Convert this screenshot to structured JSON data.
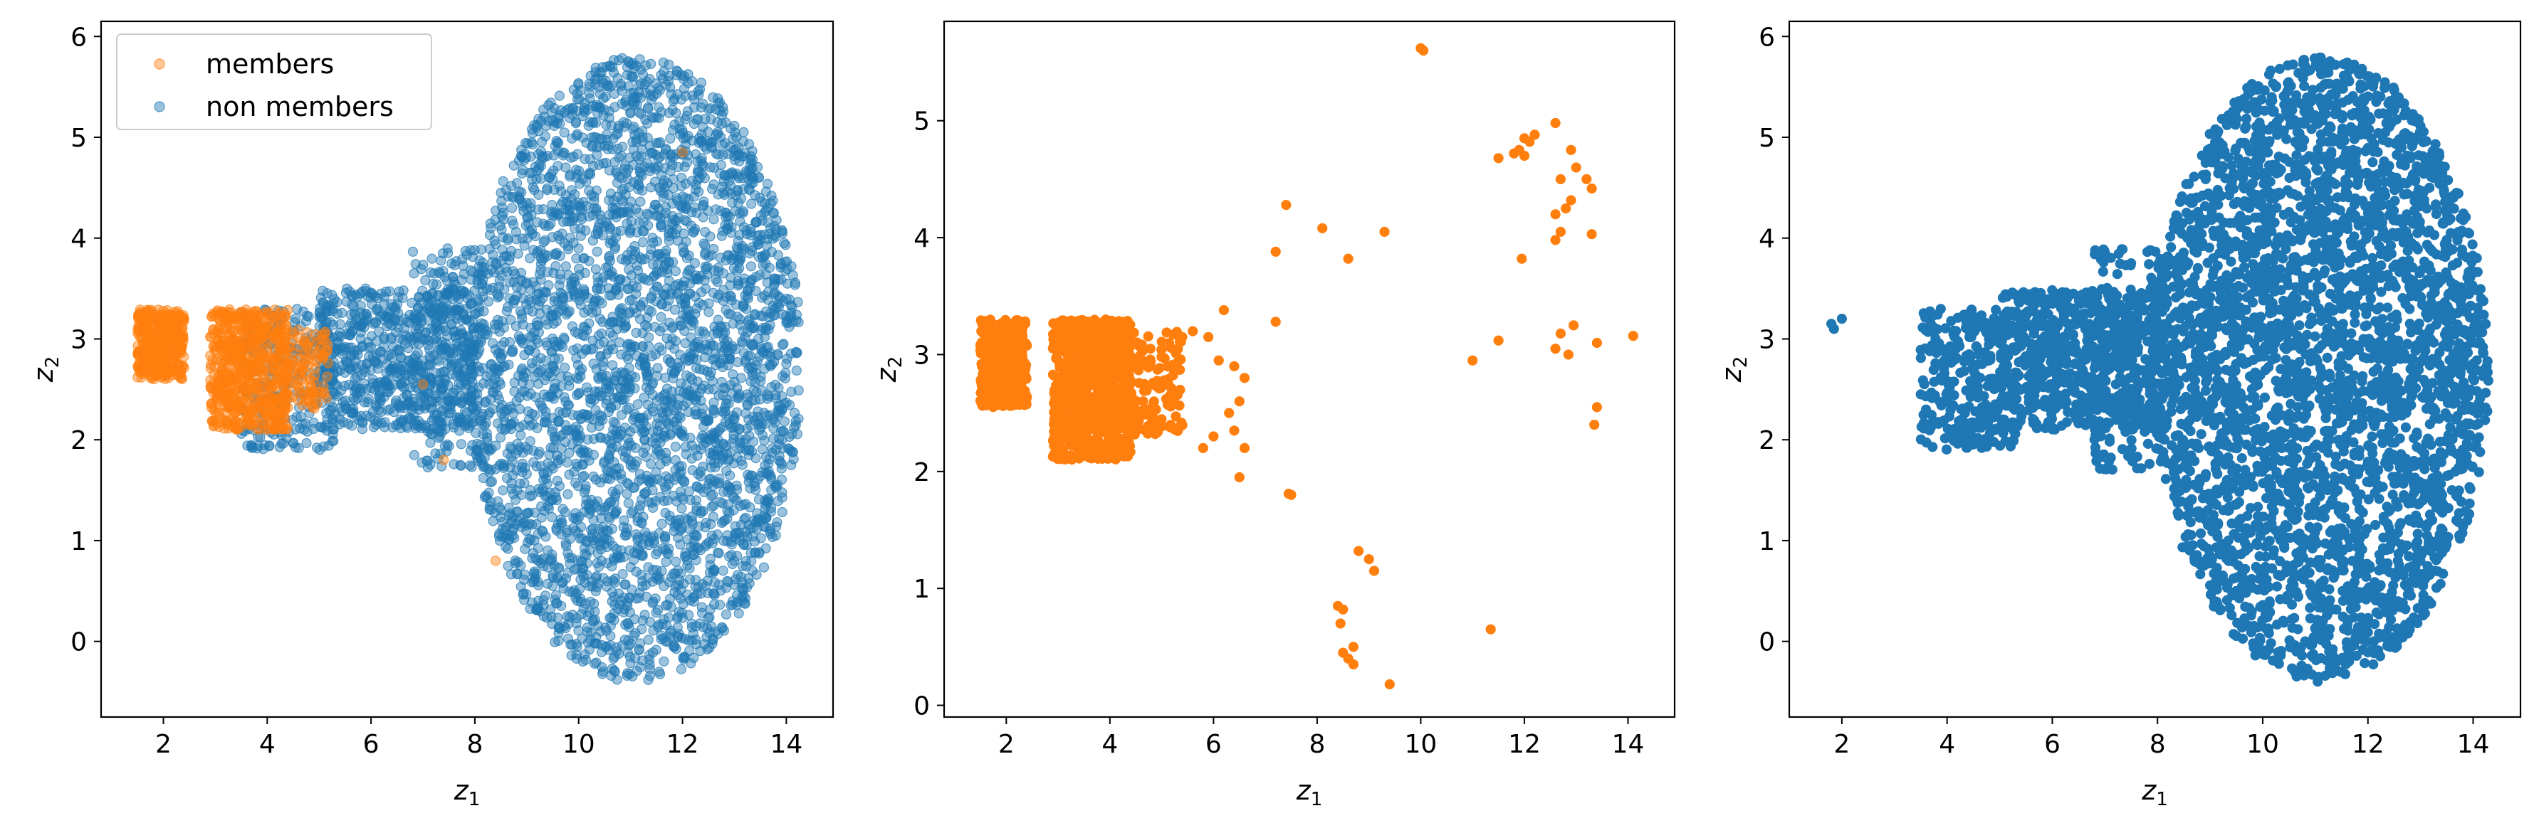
{
  "colors": {
    "members": "#ff7f0e",
    "non_members": "#1f77b4"
  },
  "chart_data": [
    {
      "type": "scatter",
      "panel": "left",
      "xlabel": "z",
      "xlabel_sub": "1",
      "ylabel": "z",
      "ylabel_sub": "2",
      "xlim": [
        0.8,
        14.9
      ],
      "ylim": [
        -0.75,
        6.15
      ],
      "xticks": [
        2,
        4,
        6,
        8,
        10,
        12,
        14
      ],
      "yticks": [
        0,
        1,
        2,
        3,
        4,
        5,
        6
      ],
      "legend": {
        "placement": "top-left",
        "entries": [
          "members",
          "non members"
        ]
      },
      "series": [
        {
          "name": "non members",
          "color": "#1f77b4",
          "alpha": 0.45,
          "clusters": [
            {
              "kind": "ellipse",
              "cx": 11.1,
              "cy": 2.7,
              "rx": 3.2,
              "ry": 3.1,
              "n": 3400
            },
            {
              "kind": "rect",
              "x0": 5.0,
              "x1": 8.0,
              "y0": 2.1,
              "y1": 3.5,
              "n": 650
            },
            {
              "kind": "rect",
              "x0": 3.5,
              "x1": 5.3,
              "y0": 1.9,
              "y1": 3.3,
              "n": 260
            },
            {
              "kind": "rect",
              "x0": 6.8,
              "x1": 8.2,
              "y0": 1.7,
              "y1": 3.9,
              "n": 220
            }
          ]
        },
        {
          "name": "members",
          "color": "#ff7f0e",
          "alpha": 0.45,
          "clusters": [
            {
              "kind": "rect",
              "x0": 1.5,
              "x1": 2.4,
              "y0": 2.6,
              "y1": 3.3,
              "n": 380
            },
            {
              "kind": "rect",
              "x0": 2.9,
              "x1": 4.4,
              "y0": 2.1,
              "y1": 3.3,
              "n": 620
            },
            {
              "kind": "rect",
              "x0": 4.3,
              "x1": 5.2,
              "y0": 2.3,
              "y1": 3.1,
              "n": 120
            }
          ],
          "points": [
            [
              12.0,
              4.85
            ],
            [
              7.4,
              1.8
            ],
            [
              7.0,
              2.55
            ],
            [
              8.4,
              0.8
            ]
          ]
        }
      ]
    },
    {
      "type": "scatter",
      "panel": "middle",
      "xlabel": "z",
      "xlabel_sub": "1",
      "ylabel": "z",
      "ylabel_sub": "2",
      "xlim": [
        0.8,
        14.9
      ],
      "ylim": [
        -0.1,
        5.85
      ],
      "xticks": [
        2,
        4,
        6,
        8,
        10,
        12,
        14
      ],
      "yticks": [
        0,
        1,
        2,
        3,
        4,
        5
      ],
      "series": [
        {
          "name": "members",
          "color": "#ff7f0e",
          "alpha": 1.0,
          "clusters": [
            {
              "kind": "rect",
              "x0": 1.5,
              "x1": 2.4,
              "y0": 2.55,
              "y1": 3.3,
              "n": 420
            },
            {
              "kind": "rect",
              "x0": 2.9,
              "x1": 4.4,
              "y0": 2.1,
              "y1": 3.3,
              "n": 700
            },
            {
              "kind": "rect",
              "x0": 4.3,
              "x1": 5.4,
              "y0": 2.3,
              "y1": 3.2,
              "n": 140
            }
          ],
          "points": [
            [
              5.6,
              3.2
            ],
            [
              5.9,
              3.15
            ],
            [
              6.2,
              3.38
            ],
            [
              6.1,
              2.95
            ],
            [
              6.4,
              2.9
            ],
            [
              6.6,
              2.8
            ],
            [
              6.5,
              2.6
            ],
            [
              6.3,
              2.5
            ],
            [
              6.4,
              2.35
            ],
            [
              6.6,
              2.2
            ],
            [
              6.5,
              1.95
            ],
            [
              6.0,
              2.3
            ],
            [
              5.8,
              2.2
            ],
            [
              7.2,
              3.88
            ],
            [
              7.4,
              4.28
            ],
            [
              8.1,
              4.08
            ],
            [
              8.6,
              3.82
            ],
            [
              9.3,
              4.05
            ],
            [
              7.2,
              3.28
            ],
            [
              7.5,
              1.8
            ],
            [
              7.45,
              1.81
            ],
            [
              10.0,
              5.62
            ],
            [
              10.05,
              5.6
            ],
            [
              11.5,
              4.68
            ],
            [
              11.9,
              4.75
            ],
            [
              12.0,
              4.85
            ],
            [
              12.1,
              4.82
            ],
            [
              12.2,
              4.88
            ],
            [
              11.8,
              4.72
            ],
            [
              12.0,
              4.7
            ],
            [
              12.6,
              4.98
            ],
            [
              12.9,
              4.75
            ],
            [
              13.0,
              4.6
            ],
            [
              13.2,
              4.5
            ],
            [
              13.3,
              4.42
            ],
            [
              12.7,
              4.5
            ],
            [
              12.8,
              4.25
            ],
            [
              12.6,
              4.2
            ],
            [
              12.9,
              4.32
            ],
            [
              12.7,
              4.05
            ],
            [
              12.6,
              3.98
            ],
            [
              13.3,
              4.03
            ],
            [
              11.95,
              3.82
            ],
            [
              12.6,
              3.05
            ],
            [
              12.7,
              3.18
            ],
            [
              12.95,
              3.25
            ],
            [
              12.85,
              3.0
            ],
            [
              13.4,
              3.1
            ],
            [
              14.1,
              3.16
            ],
            [
              11.5,
              3.12
            ],
            [
              11.0,
              2.95
            ],
            [
              13.4,
              2.55
            ],
            [
              13.35,
              2.4
            ],
            [
              8.8,
              1.32
            ],
            [
              9.0,
              1.25
            ],
            [
              9.1,
              1.15
            ],
            [
              8.4,
              0.85
            ],
            [
              8.5,
              0.82
            ],
            [
              8.45,
              0.7
            ],
            [
              8.7,
              0.5
            ],
            [
              8.5,
              0.45
            ],
            [
              8.6,
              0.4
            ],
            [
              8.7,
              0.35
            ],
            [
              9.4,
              0.18
            ],
            [
              11.35,
              0.65
            ]
          ]
        }
      ]
    },
    {
      "type": "scatter",
      "panel": "right",
      "xlabel": "z",
      "xlabel_sub": "1",
      "ylabel": "z",
      "ylabel_sub": "2",
      "xlim": [
        1.0,
        14.9
      ],
      "ylim": [
        -0.75,
        6.15
      ],
      "xticks": [
        2,
        4,
        6,
        8,
        10,
        12,
        14
      ],
      "yticks": [
        0,
        1,
        2,
        3,
        4,
        5,
        6
      ],
      "series": [
        {
          "name": "non members",
          "color": "#1f77b4",
          "alpha": 1.0,
          "clusters": [
            {
              "kind": "ellipse",
              "cx": 11.1,
              "cy": 2.7,
              "rx": 3.2,
              "ry": 3.1,
              "n": 3400
            },
            {
              "kind": "rect",
              "x0": 5.0,
              "x1": 8.0,
              "y0": 2.1,
              "y1": 3.5,
              "n": 650
            },
            {
              "kind": "rect",
              "x0": 3.5,
              "x1": 5.3,
              "y0": 1.9,
              "y1": 3.3,
              "n": 260
            },
            {
              "kind": "rect",
              "x0": 6.8,
              "x1": 8.2,
              "y0": 1.7,
              "y1": 3.9,
              "n": 220
            }
          ],
          "points": [
            [
              1.8,
              3.15
            ],
            [
              1.85,
              3.1
            ],
            [
              2.0,
              3.2
            ],
            [
              3.5,
              2.45
            ],
            [
              3.6,
              2.3
            ]
          ]
        }
      ]
    }
  ]
}
